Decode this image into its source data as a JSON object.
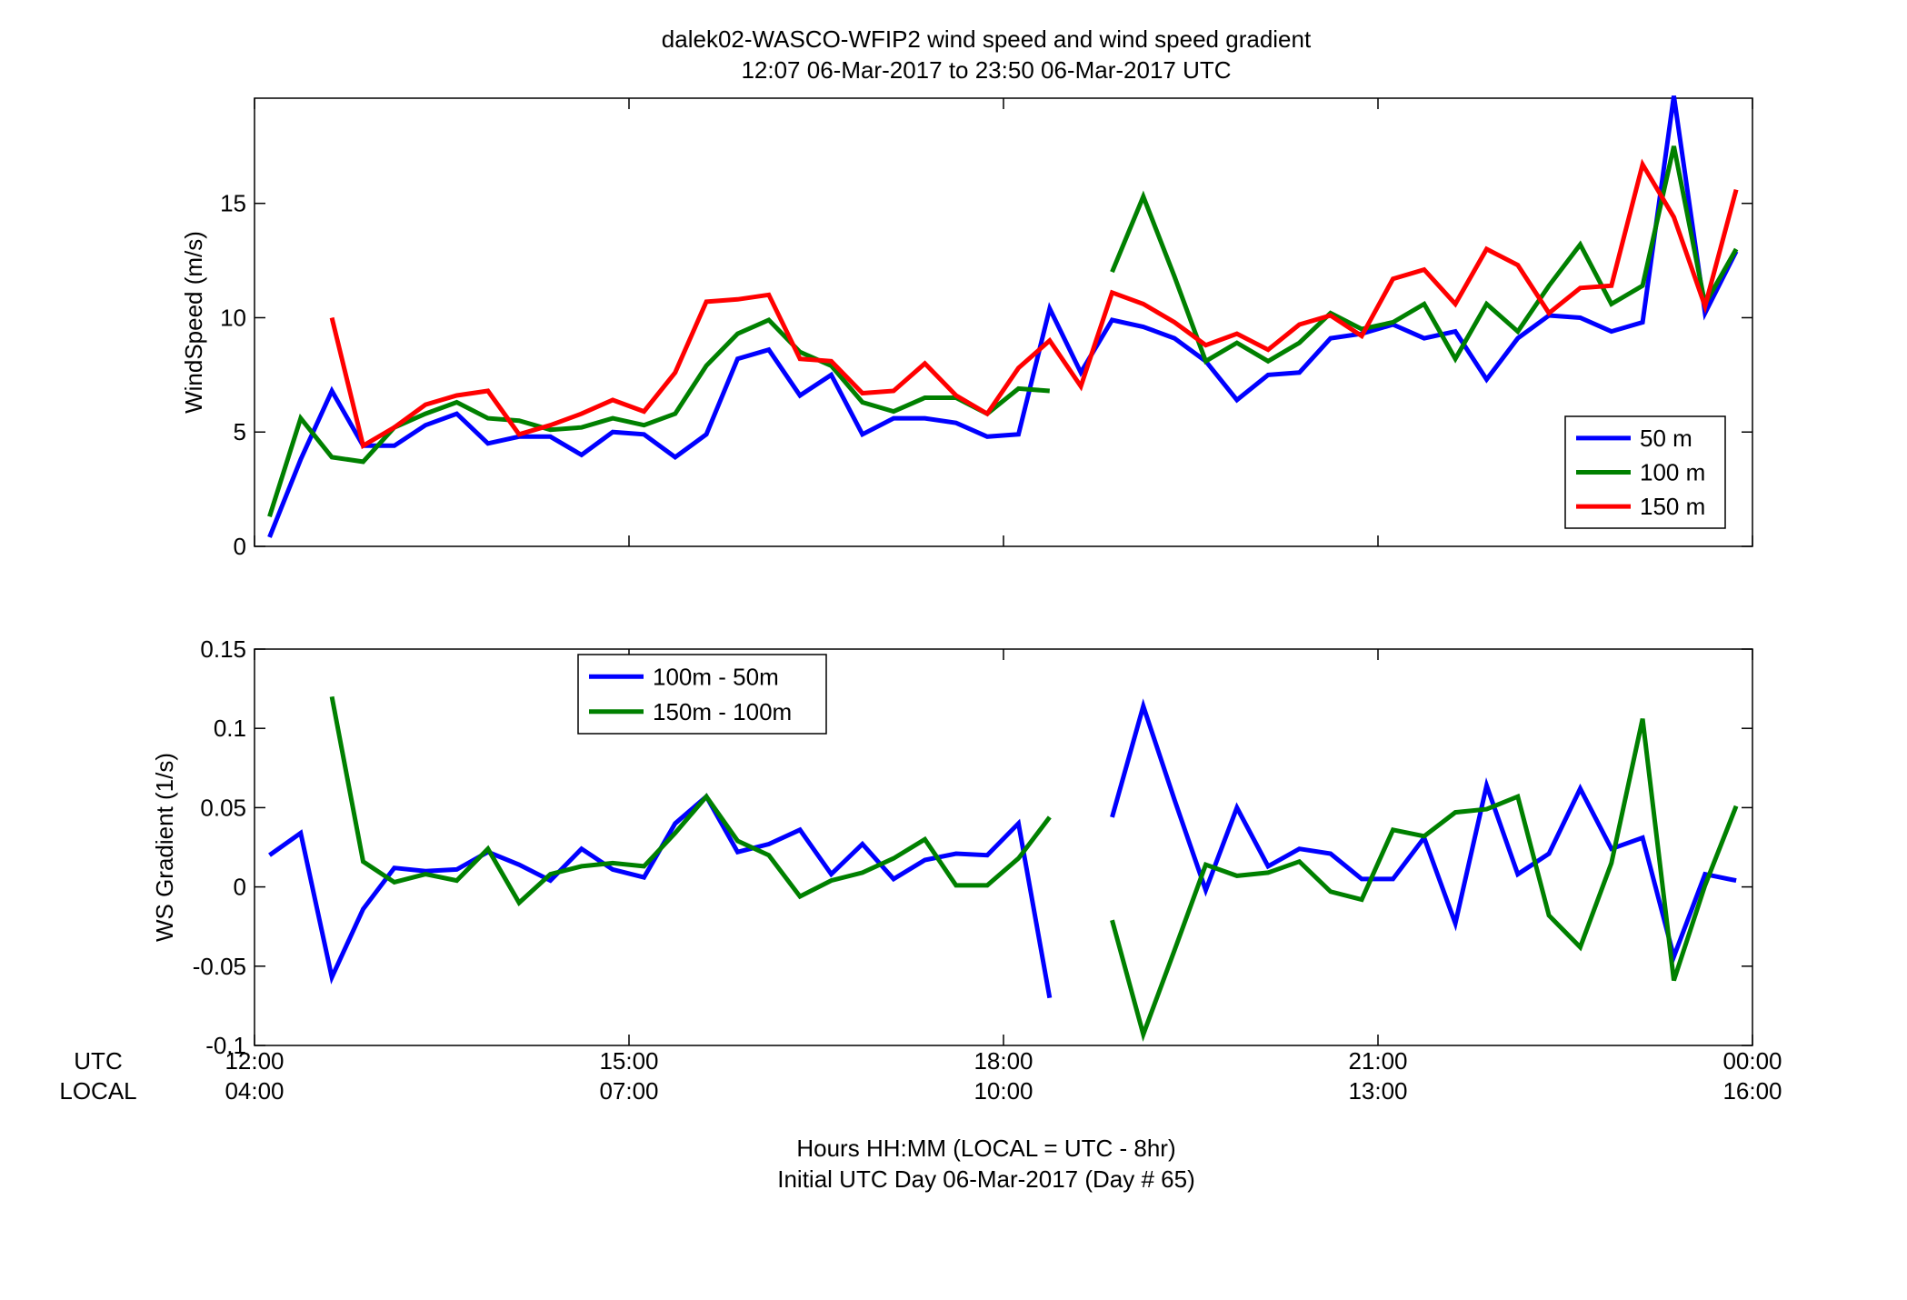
{
  "title_line1": "dalek02-WASCO-WFIP2  wind speed and wind speed gradient",
  "title_line2": "12:07 06-Mar-2017 to 23:50 06-Mar-2017  UTC",
  "xaxis": {
    "row_label_utc": "UTC",
    "row_label_local": "LOCAL",
    "utc_ticks": [
      "12:00",
      "15:00",
      "18:00",
      "21:00",
      "00:00"
    ],
    "local_ticks": [
      "04:00",
      "07:00",
      "10:00",
      "13:00",
      "16:00"
    ],
    "tick_hours": [
      12,
      15,
      18,
      21,
      24
    ],
    "xlabel_line1": "Hours HH:MM  (LOCAL = UTC - 8hr)",
    "xlabel_line2": "Initial UTC Day 06-Mar-2017 (Day # 65)"
  },
  "colors": {
    "blue": "#0000ff",
    "green": "#008000",
    "red": "#ff0000"
  },
  "chart_data": [
    {
      "type": "line",
      "ylabel": "WindSpeed (m/s)",
      "xlim": [
        12,
        24
      ],
      "ylim": [
        0,
        19.6
      ],
      "yticks": [
        0,
        5,
        10,
        15
      ],
      "ytick_labels": [
        "0",
        "5",
        "10",
        "15"
      ],
      "grid": false,
      "legend_position": "lower-right",
      "x": [
        12.12,
        12.37,
        12.62,
        12.87,
        13.12,
        13.37,
        13.62,
        13.87,
        14.12,
        14.37,
        14.62,
        14.87,
        15.12,
        15.37,
        15.62,
        15.87,
        16.12,
        16.37,
        16.62,
        16.87,
        17.12,
        17.37,
        17.62,
        17.87,
        18.12,
        18.37,
        18.62,
        18.87,
        19.12,
        19.37,
        19.62,
        19.87,
        20.12,
        20.37,
        20.62,
        20.87,
        21.12,
        21.37,
        21.62,
        21.87,
        22.12,
        22.37,
        22.62,
        22.87,
        23.12,
        23.37,
        23.62,
        23.87
      ],
      "series": [
        {
          "name": "50 m",
          "color": "#0000ff",
          "values": [
            0.4,
            3.8,
            6.8,
            4.4,
            4.4,
            5.3,
            5.8,
            4.5,
            4.8,
            4.8,
            4.0,
            5.0,
            4.9,
            3.9,
            4.9,
            8.2,
            8.6,
            6.6,
            7.5,
            4.9,
            5.6,
            5.6,
            5.4,
            4.8,
            4.9,
            10.4,
            7.6,
            9.9,
            9.6,
            9.1,
            8.1,
            6.4,
            7.5,
            7.6,
            9.1,
            9.3,
            9.7,
            9.1,
            9.4,
            7.3,
            9.1,
            10.1,
            10.0,
            9.4,
            9.8,
            19.7,
            10.2,
            12.9
          ]
        },
        {
          "name": "100 m",
          "color": "#008000",
          "values": [
            1.3,
            5.6,
            3.9,
            3.7,
            5.2,
            5.8,
            6.3,
            5.6,
            5.5,
            5.1,
            5.2,
            5.6,
            5.3,
            5.8,
            7.9,
            9.3,
            9.9,
            8.5,
            7.9,
            6.3,
            5.9,
            6.5,
            6.5,
            5.8,
            6.9,
            6.8,
            null,
            12.0,
            15.3,
            11.8,
            8.1,
            8.9,
            8.1,
            8.9,
            10.2,
            9.5,
            9.8,
            10.6,
            8.2,
            10.6,
            9.4,
            11.4,
            13.2,
            10.6,
            11.4,
            17.5,
            10.6,
            13.0
          ]
        },
        {
          "name": "150 m",
          "color": "#ff0000",
          "values": [
            null,
            null,
            10.0,
            4.4,
            5.2,
            6.2,
            6.6,
            6.8,
            4.9,
            5.3,
            5.8,
            6.4,
            5.9,
            7.6,
            10.7,
            10.8,
            11.0,
            8.2,
            8.1,
            6.7,
            6.8,
            8.0,
            6.6,
            5.8,
            7.8,
            9.0,
            7.0,
            11.1,
            10.6,
            9.8,
            8.8,
            9.3,
            8.6,
            9.7,
            10.1,
            9.2,
            11.7,
            12.1,
            10.6,
            13.0,
            12.3,
            10.2,
            11.3,
            11.4,
            16.7,
            14.4,
            10.5,
            15.6
          ]
        }
      ]
    },
    {
      "type": "line",
      "ylabel": "WS Gradient (1/s)",
      "xlim": [
        12,
        24
      ],
      "ylim": [
        -0.1,
        0.15
      ],
      "yticks": [
        -0.1,
        -0.05,
        0,
        0.05,
        0.1,
        0.15
      ],
      "ytick_labels": [
        "-0.1",
        "-0.05",
        "0",
        "0.05",
        "0.1",
        "0.15"
      ],
      "grid": false,
      "legend_position": "upper-left",
      "x": [
        12.12,
        12.37,
        12.62,
        12.87,
        13.12,
        13.37,
        13.62,
        13.87,
        14.12,
        14.37,
        14.62,
        14.87,
        15.12,
        15.37,
        15.62,
        15.87,
        16.12,
        16.37,
        16.62,
        16.87,
        17.12,
        17.37,
        17.62,
        17.87,
        18.12,
        18.37,
        18.62,
        18.87,
        19.12,
        19.37,
        19.62,
        19.87,
        20.12,
        20.37,
        20.62,
        20.87,
        21.12,
        21.37,
        21.62,
        21.87,
        22.12,
        22.37,
        22.62,
        22.87,
        23.12,
        23.37,
        23.62,
        23.87
      ],
      "series": [
        {
          "name": "100m - 50m",
          "color": "#0000ff",
          "values": [
            0.02,
            0.034,
            -0.057,
            -0.014,
            0.012,
            0.01,
            0.011,
            0.022,
            0.014,
            0.004,
            0.024,
            0.011,
            0.006,
            0.04,
            0.057,
            0.022,
            0.027,
            0.036,
            0.008,
            0.027,
            0.005,
            0.017,
            0.021,
            0.02,
            0.04,
            -0.07,
            null,
            0.044,
            0.114,
            0.055,
            -0.002,
            0.05,
            0.013,
            0.024,
            0.021,
            0.005,
            0.005,
            0.031,
            -0.023,
            0.064,
            0.008,
            0.021,
            0.062,
            0.024,
            0.031,
            -0.044,
            0.008,
            0.004
          ]
        },
        {
          "name": "150m - 100m",
          "color": "#008000",
          "values": [
            null,
            null,
            0.12,
            0.016,
            0.003,
            0.008,
            0.004,
            0.024,
            -0.01,
            0.008,
            0.013,
            0.015,
            0.013,
            0.034,
            0.057,
            0.029,
            0.02,
            -0.006,
            0.004,
            0.009,
            0.018,
            0.03,
            0.001,
            0.001,
            0.018,
            0.044,
            null,
            -0.021,
            -0.093,
            -0.04,
            0.014,
            0.007,
            0.009,
            0.016,
            -0.003,
            -0.008,
            0.036,
            0.032,
            0.047,
            0.049,
            0.057,
            -0.018,
            -0.038,
            0.015,
            0.106,
            -0.059,
            0.001,
            0.051
          ]
        }
      ]
    }
  ]
}
